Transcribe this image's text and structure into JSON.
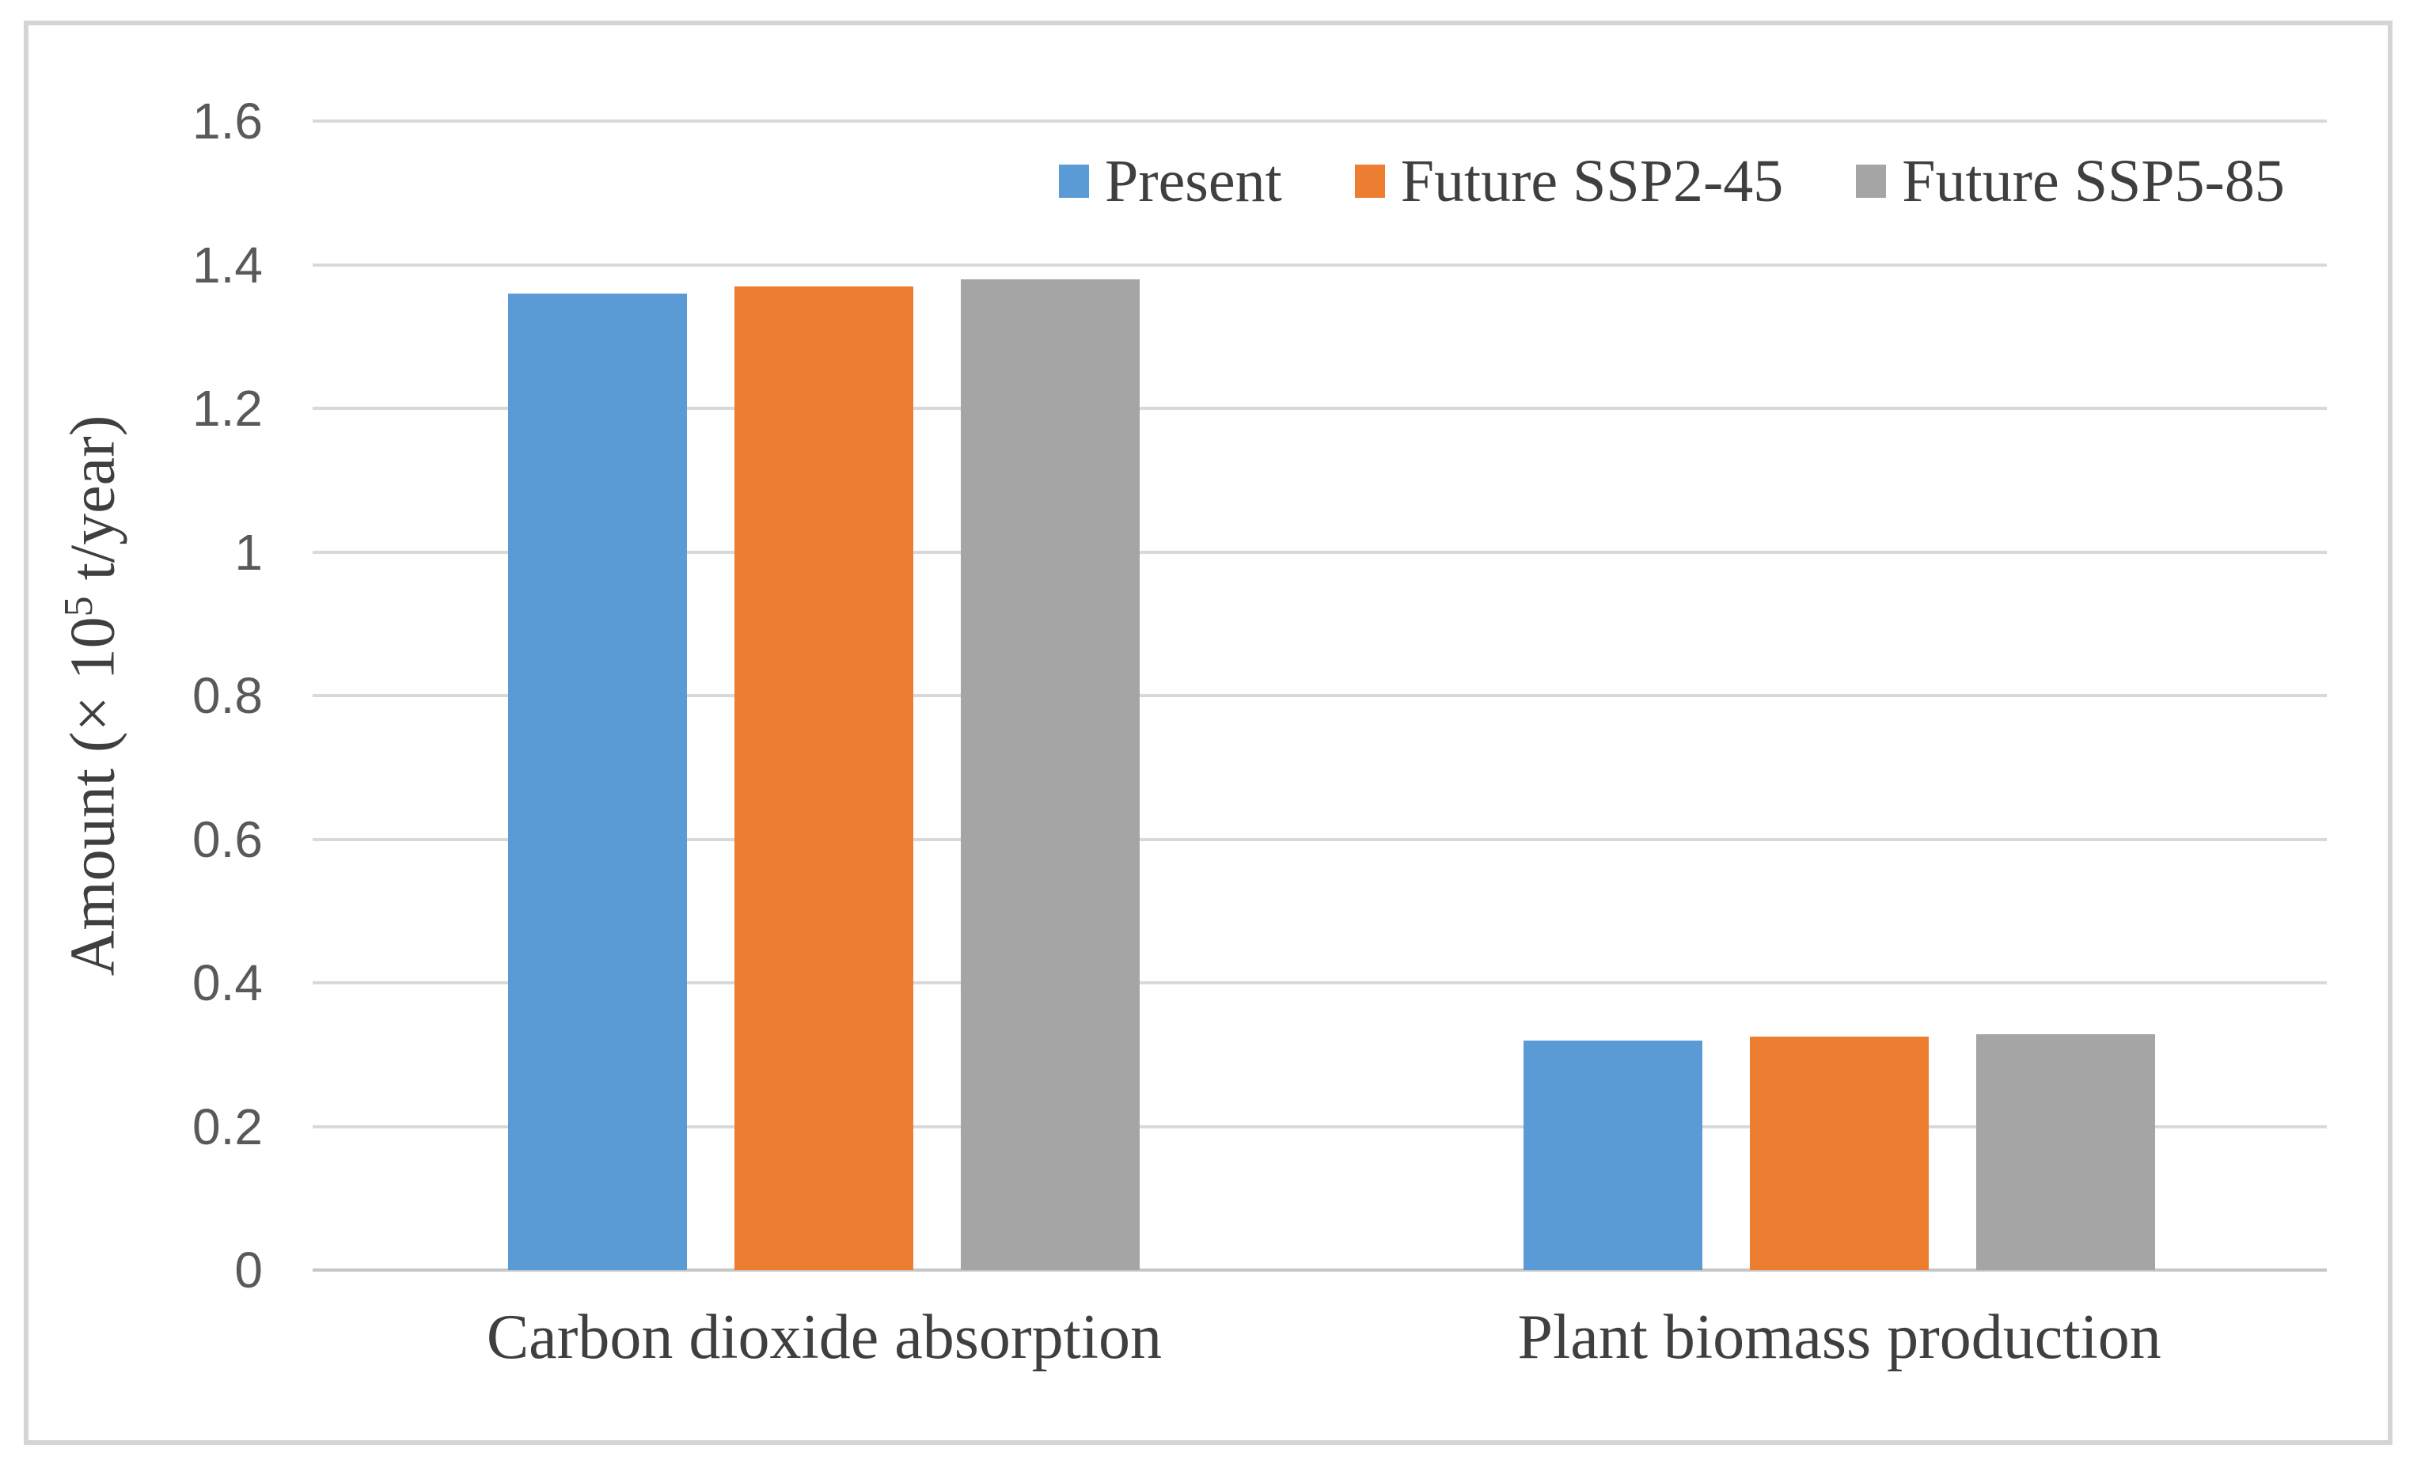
{
  "chart_data": {
    "type": "bar",
    "title": "",
    "categories": [
      "Carbon dioxide absorption",
      "Plant biomass production"
    ],
    "series": [
      {
        "name": "Present",
        "color": "#5B9BD5",
        "values": [
          1.36,
          0.32
        ]
      },
      {
        "name": "Future SSP2-45",
        "color": "#ED7D31",
        "values": [
          1.37,
          0.325
        ]
      },
      {
        "name": "Future SSP5-85",
        "color": "#A5A5A5",
        "values": [
          1.38,
          0.328
        ]
      }
    ],
    "ylabel_pre": "Amount (× 10",
    "ylabel_sup": "5",
    "ylabel_post": " t/year)",
    "yticks": [
      "1.6",
      "1.4",
      "1.2",
      "1",
      "0.8",
      "0.6",
      "0.4",
      "0.2",
      "0"
    ],
    "ytick_values": [
      1.6,
      1.4,
      1.2,
      1,
      0.8,
      0.6,
      0.4,
      0.2,
      0
    ],
    "ylim": [
      0,
      1.6
    ],
    "xlabel": "",
    "grid": true,
    "legend_position": "top-right-inside"
  },
  "colors": {
    "grid": "#D9D9D9",
    "baseline": "#C6C6C6",
    "border": "#D5D5D5",
    "tick_text": "#595959",
    "label_text": "#3F3F3F",
    "background": "#FFFFFF"
  }
}
